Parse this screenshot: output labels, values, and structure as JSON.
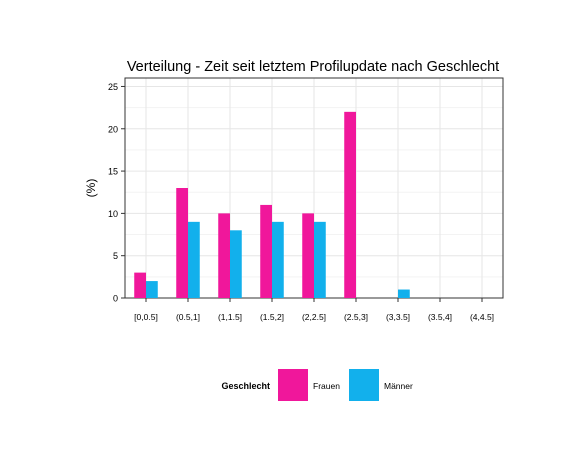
{
  "chart_data": {
    "type": "bar",
    "title": "Verteilung - Zeit seit letztem Profilupdate nach Geschlecht",
    "xlabel": "",
    "ylabel": "(%)",
    "ylim": [
      0,
      26
    ],
    "yticks": [
      0,
      5,
      10,
      15,
      20,
      25
    ],
    "grid": true,
    "legend_position": "bottom",
    "legend_title": "Geschlecht",
    "categories": [
      "[0,0.5]",
      "(0.5,1]",
      "(1,1.5]",
      "(1.5,2]",
      "(2,2.5]",
      "(2.5,3]",
      "(3,3.5]",
      "(3.5,4]",
      "(4,4.5]"
    ],
    "series": [
      {
        "name": "Frauen",
        "color": "#F0179B",
        "values": [
          3,
          13,
          10,
          11,
          10,
          22,
          0,
          0,
          0
        ]
      },
      {
        "name": "Männer",
        "color": "#12B0EC",
        "values": [
          2,
          9,
          8,
          9,
          9,
          0,
          1,
          0,
          0
        ]
      }
    ]
  }
}
